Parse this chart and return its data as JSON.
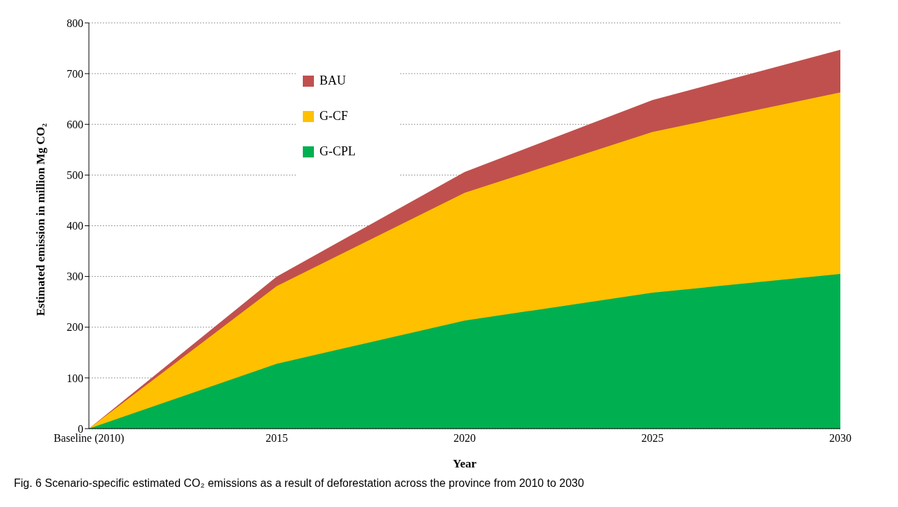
{
  "chart_data": {
    "type": "area",
    "xlabel": "Year",
    "ylabel": "Estimated emission in million Mg CO₂",
    "categories": [
      "Baseline (2010)",
      "2015",
      "2020",
      "2025",
      "2030"
    ],
    "series": [
      {
        "name": "BAU",
        "color": "#c0504d",
        "values": [
          0,
          300,
          506,
          648,
          747
        ]
      },
      {
        "name": "G-CF",
        "color": "#ffc000",
        "values": [
          0,
          281,
          465,
          585,
          663
        ]
      },
      {
        "name": "G-CPL",
        "color": "#00b050",
        "values": [
          0,
          128,
          213,
          268,
          305
        ]
      }
    ],
    "ylim": [
      0,
      800
    ],
    "yticks": [
      0,
      100,
      200,
      300,
      400,
      500,
      600,
      700,
      800
    ],
    "grid": "y",
    "legend": "top left",
    "annotations": [
      "Fig. 6  Scenario-specific estimated CO₂ emissions as a result of deforestation across the province from 2010 to 2030"
    ]
  }
}
